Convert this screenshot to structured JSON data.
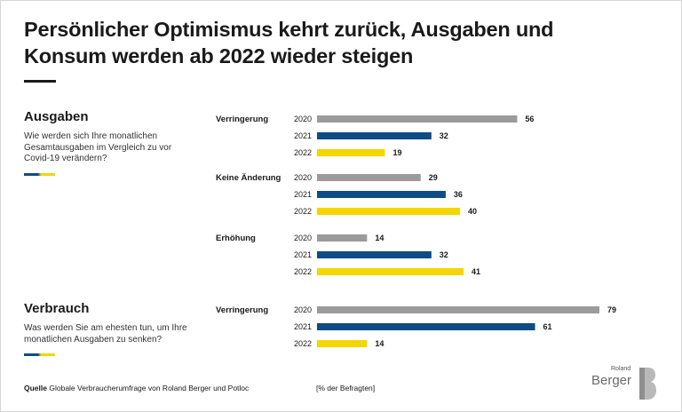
{
  "title": "Persönlicher Optimismus kehrt zurück, Ausgaben und Konsum werden ab 2022 wieder steigen",
  "sections": {
    "ausgaben": {
      "title": "Ausgaben",
      "question": "Wie werden sich Ihre monatlichen Gesamtausgaben im Vergleich zu vor Covid-19 verändern?"
    },
    "verbrauch": {
      "title": "Verbrauch",
      "question": "Was werden Sie am ehesten tun, um Ihre monatlichen Ausgaben zu senken?"
    }
  },
  "footer": {
    "source_prefix": "Quelle",
    "source_text": "Globale Verbraucherumfrage von Roland Berger und Potloc",
    "unit": "[% der Befragten]"
  },
  "logo": {
    "small": "Roland",
    "big": "Berger",
    "mark": "B"
  },
  "colors": {
    "2020": "#9b9b9b",
    "2021": "#0e4c86",
    "2022": "#f5d600"
  },
  "chart_data": {
    "type": "bar",
    "orientation": "horizontal",
    "years": [
      "2020",
      "2021",
      "2022"
    ],
    "unit": "[% der Befragten]",
    "groups": [
      {
        "section": "Ausgaben",
        "label": "Verringerung",
        "values": [
          56,
          32,
          19
        ]
      },
      {
        "section": "Ausgaben",
        "label": "Keine Änderung",
        "values": [
          29,
          36,
          40
        ]
      },
      {
        "section": "Ausgaben",
        "label": "Erhöhung",
        "values": [
          14,
          32,
          41
        ]
      },
      {
        "section": "Verbrauch",
        "label": "Verringerung",
        "values": [
          79,
          61,
          14
        ]
      }
    ]
  }
}
